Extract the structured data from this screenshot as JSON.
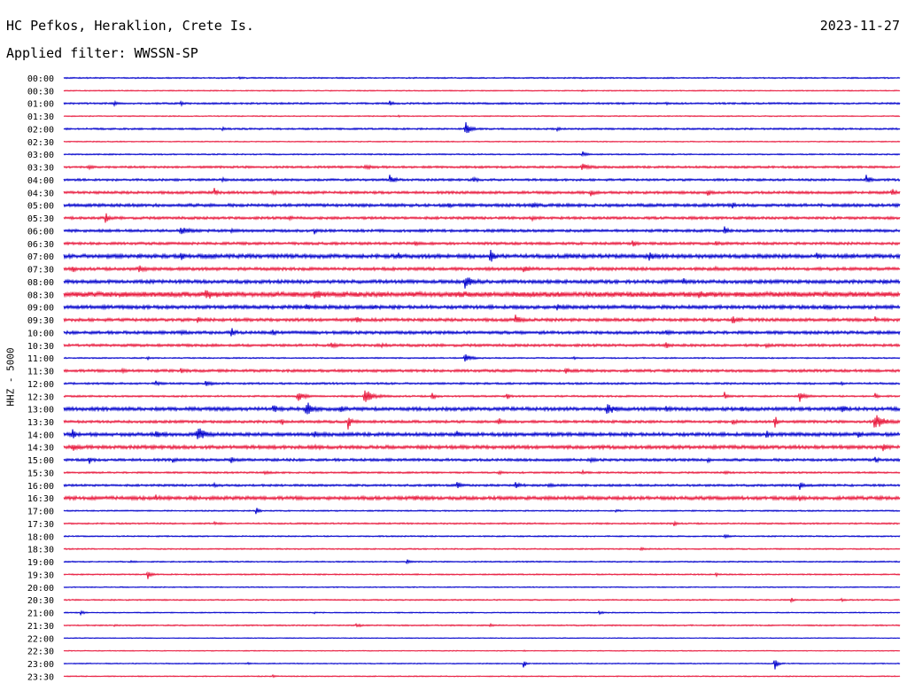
{
  "header": {
    "station": "HC Pefkos, Heraklion, Crete Is.",
    "date": "2023-11-27",
    "filter": "Applied filter: WWSSN-SP",
    "channel": "HHZ - 5000"
  },
  "colors": {
    "trace_even": "#0000cc",
    "trace_odd": "#e8183c",
    "background": "#ffffff",
    "text": "#000000"
  },
  "chart_data": {
    "type": "line",
    "title": "HC Pefkos, Heraklion, Crete Is.",
    "subtitle": "Applied filter: WWSSN-SP",
    "ylabel": "HHZ - 5000",
    "date": "2023-11-27",
    "grid": false,
    "legend": "none",
    "x_range_minutes": [
      0,
      30
    ],
    "series": [
      {
        "start": "00:00",
        "noise": 0.15,
        "events": [
          [
            21,
            0.3,
            0.4
          ]
        ]
      },
      {
        "start": "00:30",
        "noise": 0.12,
        "events": [
          [
            25,
            0.25,
            0.3
          ],
          [
            62,
            0.3,
            0.3
          ]
        ]
      },
      {
        "start": "01:00",
        "noise": 0.2,
        "events": [
          [
            6,
            0.6,
            0.5
          ],
          [
            14,
            0.5,
            0.5
          ],
          [
            39,
            0.7,
            0.5
          ],
          [
            72,
            0.3,
            0.4
          ]
        ]
      },
      {
        "start": "01:30",
        "noise": 0.12,
        "events": [
          [
            40,
            0.3,
            0.4
          ]
        ]
      },
      {
        "start": "02:00",
        "noise": 0.2,
        "events": [
          [
            19,
            0.5,
            0.5
          ],
          [
            48,
            2.2,
            0.9
          ],
          [
            59,
            0.6,
            0.5
          ]
        ]
      },
      {
        "start": "02:30",
        "noise": 0.12,
        "events": []
      },
      {
        "start": "03:00",
        "noise": 0.15,
        "events": [
          [
            62,
            0.9,
            0.6
          ]
        ]
      },
      {
        "start": "03:30",
        "noise": 0.25,
        "events": [
          [
            3,
            0.3,
            1.0
          ],
          [
            36,
            0.4,
            1.5
          ],
          [
            62,
            1.0,
            1.2
          ]
        ]
      },
      {
        "start": "04:00",
        "noise": 0.25,
        "events": [
          [
            19,
            0.6,
            0.6
          ],
          [
            39,
            1.4,
            0.8
          ],
          [
            49,
            0.5,
            0.8
          ],
          [
            96,
            1.6,
            0.6
          ]
        ]
      },
      {
        "start": "04:30",
        "noise": 0.3,
        "events": [
          [
            18,
            1.1,
            0.5
          ],
          [
            25,
            0.4,
            0.6
          ],
          [
            63,
            0.8,
            0.6
          ],
          [
            77,
            0.8,
            0.6
          ],
          [
            99,
            1.0,
            0.6
          ]
        ]
      },
      {
        "start": "05:00",
        "noise": 0.35,
        "events": [
          [
            46,
            0.6,
            0.5
          ],
          [
            56,
            0.9,
            0.6
          ],
          [
            80,
            0.7,
            0.6
          ]
        ]
      },
      {
        "start": "05:30",
        "noise": 0.3,
        "events": [
          [
            5,
            1.4,
            0.6
          ],
          [
            27,
            0.5,
            0.6
          ],
          [
            56,
            0.6,
            0.6
          ],
          [
            75,
            0.5,
            0.6
          ]
        ]
      },
      {
        "start": "06:00",
        "noise": 0.3,
        "events": [
          [
            14,
            0.9,
            1.5
          ],
          [
            20,
            0.5,
            0.4
          ],
          [
            30,
            0.8,
            0.6
          ],
          [
            52,
            0.4,
            0.5
          ],
          [
            79,
            1.0,
            0.6
          ]
        ]
      },
      {
        "start": "06:30",
        "noise": 0.3,
        "events": [
          [
            42,
            0.6,
            0.5
          ],
          [
            68,
            1.6,
            0.5
          ],
          [
            78,
            0.5,
            0.6
          ]
        ]
      },
      {
        "start": "07:00",
        "noise": 0.45,
        "events": [
          [
            14,
            1.2,
            0.4
          ],
          [
            40,
            0.7,
            0.5
          ],
          [
            51,
            1.6,
            0.7
          ],
          [
            70,
            1.2,
            0.6
          ],
          [
            90,
            1.0,
            0.5
          ]
        ]
      },
      {
        "start": "07:30",
        "noise": 0.35,
        "events": [
          [
            1,
            1.0,
            0.4
          ],
          [
            9,
            1.0,
            1.0
          ],
          [
            55,
            1.0,
            0.8
          ],
          [
            78,
            0.5,
            0.6
          ]
        ]
      },
      {
        "start": "08:00",
        "noise": 0.4,
        "events": [
          [
            48,
            1.6,
            1.2
          ],
          [
            74,
            0.8,
            0.6
          ],
          [
            98,
            0.8,
            0.6
          ]
        ]
      },
      {
        "start": "08:30",
        "noise": 0.6,
        "events": [
          [
            17,
            0.8,
            1.5
          ],
          [
            30,
            0.7,
            1.5
          ],
          [
            47,
            0.5,
            1.5
          ],
          [
            76,
            0.7,
            1.5
          ]
        ]
      },
      {
        "start": "09:00",
        "noise": 0.4,
        "events": [
          [
            29,
            0.9,
            0.6
          ],
          [
            37,
            0.6,
            0.5
          ],
          [
            59,
            0.6,
            0.5
          ],
          [
            91,
            1.0,
            0.6
          ]
        ]
      },
      {
        "start": "09:30",
        "noise": 0.35,
        "events": [
          [
            16,
            0.8,
            0.6
          ],
          [
            35,
            0.9,
            0.6
          ],
          [
            54,
            1.3,
            0.8
          ],
          [
            80,
            1.0,
            1.0
          ],
          [
            97,
            1.2,
            0.3
          ]
        ]
      },
      {
        "start": "10:00",
        "noise": 0.35,
        "events": [
          [
            14,
            0.5,
            0.5
          ],
          [
            20,
            1.8,
            0.5
          ],
          [
            25,
            0.7,
            0.4
          ],
          [
            72,
            0.5,
            0.6
          ]
        ]
      },
      {
        "start": "10:30",
        "noise": 0.3,
        "events": [
          [
            32,
            0.7,
            0.7
          ],
          [
            38,
            0.5,
            0.5
          ],
          [
            72,
            0.8,
            0.6
          ],
          [
            84,
            0.6,
            0.5
          ]
        ]
      },
      {
        "start": "11:00",
        "noise": 0.15,
        "events": [
          [
            10,
            0.4,
            0.5
          ],
          [
            48,
            1.3,
            1.2
          ],
          [
            61,
            0.3,
            0.4
          ]
        ]
      },
      {
        "start": "11:30",
        "noise": 0.3,
        "events": [
          [
            7,
            1.1,
            0.4
          ],
          [
            14,
            0.6,
            0.6
          ],
          [
            60,
            0.6,
            0.6
          ],
          [
            88,
            0.5,
            0.6
          ]
        ]
      },
      {
        "start": "12:00",
        "noise": 0.22,
        "events": [
          [
            11,
            0.6,
            0.6
          ],
          [
            17,
            0.9,
            0.8
          ],
          [
            93,
            0.4,
            0.5
          ]
        ]
      },
      {
        "start": "12:30",
        "noise": 0.2,
        "events": [
          [
            28,
            1.2,
            1.5
          ],
          [
            36,
            2.0,
            1.5
          ],
          [
            44,
            1.8,
            0.5
          ],
          [
            53,
            1.0,
            0.4
          ],
          [
            79,
            1.2,
            0.4
          ],
          [
            88,
            1.4,
            1.0
          ],
          [
            97,
            1.2,
            0.4
          ]
        ]
      },
      {
        "start": "13:00",
        "noise": 0.4,
        "events": [
          [
            25,
            1.8,
            0.6
          ],
          [
            29,
            2.2,
            1.0
          ],
          [
            33,
            1.0,
            0.6
          ],
          [
            65,
            1.6,
            1.2
          ],
          [
            72,
            0.8,
            0.6
          ],
          [
            81,
            0.9,
            0.5
          ],
          [
            93,
            1.2,
            0.7
          ]
        ]
      },
      {
        "start": "13:30",
        "noise": 0.3,
        "events": [
          [
            26,
            1.0,
            0.6
          ],
          [
            34,
            2.0,
            0.6
          ],
          [
            52,
            0.9,
            1.0
          ],
          [
            80,
            0.8,
            0.5
          ],
          [
            85,
            2.6,
            0.4
          ],
          [
            97,
            2.4,
            1.5
          ]
        ]
      },
      {
        "start": "14:00",
        "noise": 0.4,
        "events": [
          [
            1,
            1.6,
            0.5
          ],
          [
            11,
            1.0,
            1.0
          ],
          [
            16,
            2.0,
            1.2
          ],
          [
            30,
            0.8,
            0.5
          ],
          [
            47,
            0.8,
            0.5
          ],
          [
            84,
            1.2,
            0.5
          ],
          [
            95,
            1.0,
            0.4
          ]
        ]
      },
      {
        "start": "14:30",
        "noise": 0.4,
        "events": [
          [
            1,
            0.9,
            0.8
          ],
          [
            30,
            0.5,
            0.8
          ],
          [
            98,
            1.0,
            0.5
          ]
        ]
      },
      {
        "start": "15:00",
        "noise": 0.3,
        "events": [
          [
            3,
            1.1,
            0.5
          ],
          [
            13,
            0.6,
            0.5
          ],
          [
            20,
            0.9,
            0.6
          ],
          [
            63,
            0.5,
            0.5
          ],
          [
            77,
            0.5,
            0.5
          ],
          [
            97,
            1.1,
            0.5
          ]
        ]
      },
      {
        "start": "15:30",
        "noise": 0.2,
        "events": [
          [
            24,
            0.4,
            0.8
          ],
          [
            52,
            0.4,
            0.7
          ],
          [
            62,
            0.5,
            0.6
          ],
          [
            79,
            0.4,
            0.6
          ]
        ]
      },
      {
        "start": "16:00",
        "noise": 0.25,
        "events": [
          [
            18,
            0.5,
            0.6
          ],
          [
            47,
            1.0,
            0.6
          ],
          [
            54,
            0.8,
            0.9
          ],
          [
            58,
            0.8,
            0.5
          ],
          [
            88,
            1.6,
            0.5
          ]
        ]
      },
      {
        "start": "16:30",
        "noise": 0.4,
        "events": [
          [
            11,
            0.6,
            0.5
          ],
          [
            42,
            0.5,
            0.6
          ],
          [
            88,
            0.8,
            0.3
          ]
        ]
      },
      {
        "start": "17:00",
        "noise": 0.15,
        "events": [
          [
            23,
            1.0,
            0.5
          ],
          [
            66,
            0.3,
            0.6
          ]
        ]
      },
      {
        "start": "17:30",
        "noise": 0.18,
        "events": [
          [
            18,
            0.4,
            0.8
          ],
          [
            73,
            0.8,
            0.4
          ]
        ]
      },
      {
        "start": "18:00",
        "noise": 0.15,
        "events": [
          [
            79,
            0.5,
            0.8
          ]
        ]
      },
      {
        "start": "18:30",
        "noise": 0.15,
        "events": [
          [
            69,
            0.3,
            0.8
          ]
        ]
      },
      {
        "start": "19:00",
        "noise": 0.15,
        "events": [
          [
            8,
            0.4,
            0.5
          ],
          [
            41,
            0.6,
            0.5
          ]
        ]
      },
      {
        "start": "19:30",
        "noise": 0.15,
        "events": [
          [
            10,
            1.4,
            0.6
          ],
          [
            78,
            0.4,
            0.4
          ]
        ]
      },
      {
        "start": "20:00",
        "noise": 0.12,
        "events": []
      },
      {
        "start": "20:30",
        "noise": 0.15,
        "events": [
          [
            87,
            0.7,
            0.5
          ],
          [
            93,
            0.4,
            0.4
          ]
        ]
      },
      {
        "start": "21:00",
        "noise": 0.12,
        "events": [
          [
            2,
            0.6,
            0.6
          ],
          [
            30,
            0.4,
            0.3
          ],
          [
            64,
            0.5,
            0.6
          ]
        ]
      },
      {
        "start": "21:30",
        "noise": 0.15,
        "events": [
          [
            6,
            0.3,
            0.4
          ],
          [
            35,
            0.5,
            0.8
          ],
          [
            51,
            0.4,
            0.6
          ]
        ]
      },
      {
        "start": "22:00",
        "noise": 0.1,
        "events": []
      },
      {
        "start": "22:30",
        "noise": 0.1,
        "events": [
          [
            55,
            0.3,
            0.3
          ]
        ]
      },
      {
        "start": "23:00",
        "noise": 0.12,
        "events": [
          [
            22,
            0.3,
            0.4
          ],
          [
            55,
            1.4,
            0.4
          ],
          [
            85,
            1.8,
            0.6
          ]
        ]
      },
      {
        "start": "23:30",
        "noise": 0.12,
        "events": [
          [
            25,
            0.3,
            0.4
          ]
        ]
      }
    ]
  }
}
